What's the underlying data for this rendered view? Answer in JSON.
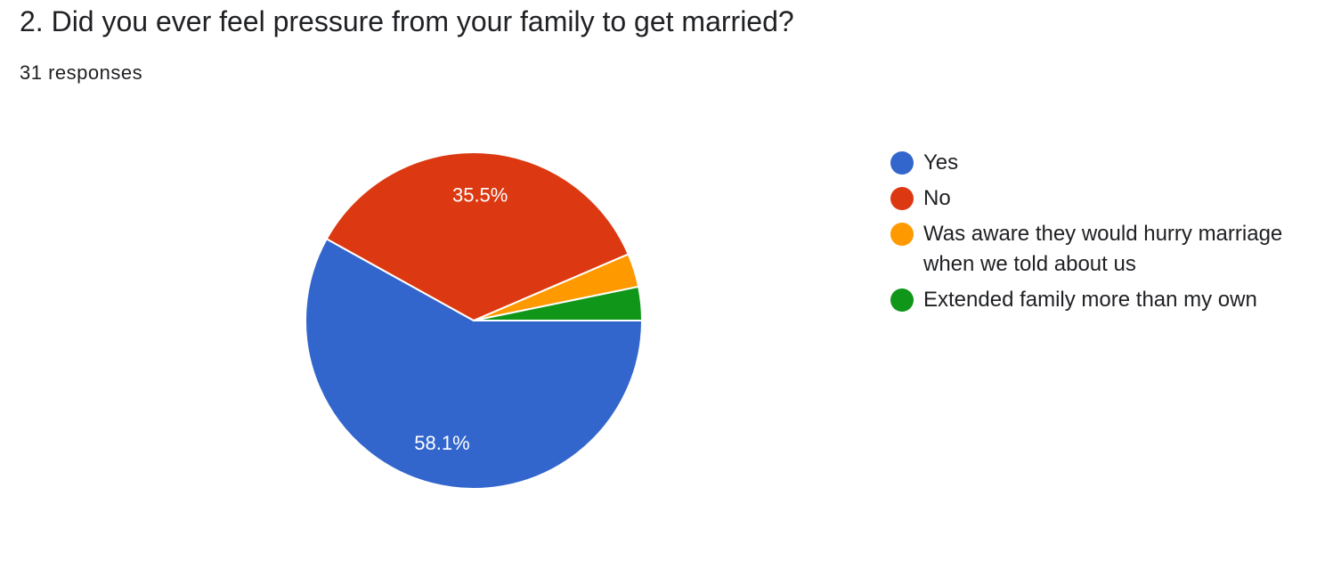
{
  "question": {
    "title": "2. Did you ever feel pressure from your family to get married?",
    "responses": "31 responses"
  },
  "colors": {
    "yes": "#3366cc",
    "no": "#dc3912",
    "aware": "#ff9900",
    "extended": "#109618"
  },
  "chart_data": {
    "type": "pie",
    "title": "2. Did you ever feel pressure from your family to get married?",
    "total_responses": 31,
    "slices": [
      {
        "label": "Yes",
        "value": 18,
        "percent": 58.1,
        "percent_label": "58.1%",
        "color": "#3366cc"
      },
      {
        "label": "No",
        "value": 11,
        "percent": 35.5,
        "percent_label": "35.5%",
        "color": "#dc3912"
      },
      {
        "label": "Was aware they would hurry marriage when we told about us",
        "value": 1,
        "percent": 3.2,
        "percent_label": "",
        "color": "#ff9900"
      },
      {
        "label": "Extended family more than my own",
        "value": 1,
        "percent": 3.2,
        "percent_label": "",
        "color": "#109618"
      }
    ],
    "legend_position": "right"
  }
}
